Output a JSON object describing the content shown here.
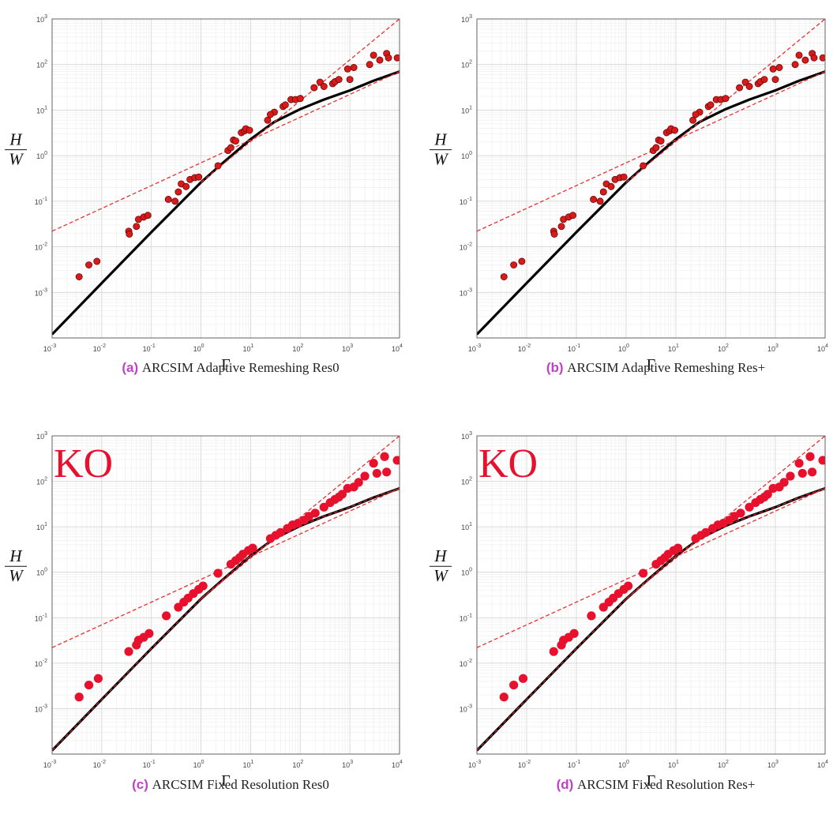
{
  "chart_data": [
    {
      "type": "scatter",
      "panel_tag": "(a)",
      "caption_sc": "ARCSIM",
      "caption_rest": " Adaptive Remeshing Res0",
      "overlay_text": "",
      "xlabel": "Γ",
      "ylabel_num": "H",
      "ylabel_den": "W",
      "xscale": "log",
      "yscale": "log",
      "xlim": [
        0.001,
        10000
      ],
      "ylim": [
        0.0001,
        1000
      ],
      "xticks": [
        "-3",
        "-2",
        "-1",
        "0",
        "1",
        "2",
        "3",
        "4"
      ],
      "yticks": [
        "-3",
        "-2",
        "-1",
        "0",
        "1",
        "2",
        "3"
      ],
      "tick_base": "10",
      "grid": true,
      "marker_size": "small",
      "points": [
        [
          0.0035,
          0.0022
        ],
        [
          0.0055,
          0.004
        ],
        [
          0.008,
          0.0048
        ],
        [
          0.035,
          0.022
        ],
        [
          0.036,
          0.019
        ],
        [
          0.05,
          0.028
        ],
        [
          0.055,
          0.04
        ],
        [
          0.07,
          0.045
        ],
        [
          0.085,
          0.049
        ],
        [
          0.22,
          0.11
        ],
        [
          0.3,
          0.1
        ],
        [
          0.35,
          0.16
        ],
        [
          0.4,
          0.24
        ],
        [
          0.5,
          0.21
        ],
        [
          0.6,
          0.3
        ],
        [
          0.75,
          0.33
        ],
        [
          0.9,
          0.34
        ],
        [
          2.2,
          0.6
        ],
        [
          3.5,
          1.3
        ],
        [
          4,
          1.5
        ],
        [
          4.5,
          2.2
        ],
        [
          5,
          2.1
        ],
        [
          6.5,
          3.2
        ],
        [
          7.5,
          3.5
        ],
        [
          8,
          3.9
        ],
        [
          9.5,
          3.6
        ],
        [
          22,
          6
        ],
        [
          30,
          9
        ],
        [
          25,
          8
        ],
        [
          45,
          12
        ],
        [
          50,
          13
        ],
        [
          65,
          17
        ],
        [
          80,
          17
        ],
        [
          100,
          18
        ],
        [
          190,
          31
        ],
        [
          250,
          41
        ],
        [
          300,
          33
        ],
        [
          450,
          38
        ],
        [
          500,
          42
        ],
        [
          600,
          47
        ],
        [
          900,
          80
        ],
        [
          1000,
          47
        ],
        [
          1200,
          86
        ],
        [
          2500,
          100
        ],
        [
          3000,
          160
        ],
        [
          4000,
          125
        ],
        [
          5500,
          175
        ],
        [
          6000,
          140
        ],
        [
          9000,
          140
        ]
      ],
      "curve": [
        [
          0.001,
          0.00012
        ],
        [
          0.01,
          0.0016
        ],
        [
          0.1,
          0.021
        ],
        [
          1,
          0.26
        ],
        [
          3,
          0.75
        ],
        [
          10,
          2.3
        ],
        [
          30,
          5.5
        ],
        [
          100,
          10.5
        ],
        [
          300,
          17
        ],
        [
          1000,
          27
        ],
        [
          3000,
          44
        ],
        [
          10000,
          70
        ]
      ],
      "dashed_lines": [
        [
          [
            0.001,
            0.022
          ],
          [
            10000,
            70
          ]
        ],
        [
          [
            1,
            0.26
          ],
          [
            10000,
            1000
          ]
        ]
      ],
      "series_colors": {
        "points": "#d91a1a",
        "curve": "#000000",
        "dashed": "#e83030"
      }
    },
    {
      "type": "scatter",
      "panel_tag": "(b)",
      "caption_sc": "ARCSIM",
      "caption_rest": " Adaptive Remeshing Res+",
      "overlay_text": "",
      "xlabel": "Γ",
      "ylabel_num": "H",
      "ylabel_den": "W",
      "xscale": "log",
      "yscale": "log",
      "xlim": [
        0.001,
        10000
      ],
      "ylim": [
        0.0001,
        1000
      ],
      "xticks": [
        "-3",
        "-2",
        "-1",
        "0",
        "1",
        "2",
        "3",
        "4"
      ],
      "yticks": [
        "-3",
        "-2",
        "-1",
        "0",
        "1",
        "2",
        "3"
      ],
      "tick_base": "10",
      "grid": true,
      "marker_size": "small",
      "points": [
        [
          0.0035,
          0.0022
        ],
        [
          0.0055,
          0.004
        ],
        [
          0.008,
          0.0048
        ],
        [
          0.035,
          0.022
        ],
        [
          0.036,
          0.019
        ],
        [
          0.05,
          0.028
        ],
        [
          0.055,
          0.04
        ],
        [
          0.07,
          0.045
        ],
        [
          0.085,
          0.049
        ],
        [
          0.22,
          0.11
        ],
        [
          0.3,
          0.1
        ],
        [
          0.35,
          0.16
        ],
        [
          0.4,
          0.24
        ],
        [
          0.5,
          0.21
        ],
        [
          0.6,
          0.3
        ],
        [
          0.75,
          0.33
        ],
        [
          0.9,
          0.34
        ],
        [
          2.2,
          0.6
        ],
        [
          3.5,
          1.3
        ],
        [
          4,
          1.5
        ],
        [
          4.5,
          2.2
        ],
        [
          5,
          2.1
        ],
        [
          6.5,
          3.2
        ],
        [
          7.5,
          3.5
        ],
        [
          8,
          3.9
        ],
        [
          9.5,
          3.6
        ],
        [
          22,
          6
        ],
        [
          30,
          9
        ],
        [
          25,
          8
        ],
        [
          45,
          12
        ],
        [
          50,
          13
        ],
        [
          65,
          17
        ],
        [
          80,
          17
        ],
        [
          100,
          18
        ],
        [
          190,
          31
        ],
        [
          250,
          41
        ],
        [
          300,
          33
        ],
        [
          450,
          38
        ],
        [
          500,
          42
        ],
        [
          600,
          47
        ],
        [
          900,
          80
        ],
        [
          1000,
          47
        ],
        [
          1200,
          86
        ],
        [
          2500,
          100
        ],
        [
          3000,
          160
        ],
        [
          4000,
          125
        ],
        [
          5500,
          175
        ],
        [
          6000,
          140
        ],
        [
          9000,
          140
        ]
      ],
      "curve": [
        [
          0.001,
          0.00012
        ],
        [
          0.01,
          0.0016
        ],
        [
          0.1,
          0.021
        ],
        [
          1,
          0.26
        ],
        [
          3,
          0.75
        ],
        [
          10,
          2.3
        ],
        [
          30,
          5.5
        ],
        [
          100,
          10.5
        ],
        [
          300,
          17
        ],
        [
          1000,
          27
        ],
        [
          3000,
          44
        ],
        [
          10000,
          70
        ]
      ],
      "dashed_lines": [
        [
          [
            0.001,
            0.022
          ],
          [
            10000,
            70
          ]
        ],
        [
          [
            1,
            0.26
          ],
          [
            10000,
            1000
          ]
        ]
      ],
      "series_colors": {
        "points": "#d91a1a",
        "curve": "#000000",
        "dashed": "#e83030"
      }
    },
    {
      "type": "scatter",
      "panel_tag": "(c)",
      "caption_sc": "ARCSIM",
      "caption_rest": " Fixed Resolution Res0",
      "overlay_text": "KO",
      "xlabel": "Γ",
      "ylabel_num": "H",
      "ylabel_den": "W",
      "xscale": "log",
      "yscale": "log",
      "xlim": [
        0.001,
        10000
      ],
      "ylim": [
        0.0001,
        1000
      ],
      "xticks": [
        "-3",
        "-2",
        "-1",
        "0",
        "1",
        "2",
        "3",
        "4"
      ],
      "yticks": [
        "-3",
        "-2",
        "-1",
        "0",
        "1",
        "2",
        "3"
      ],
      "tick_base": "10",
      "grid": true,
      "marker_size": "large",
      "points": [
        [
          0.0035,
          0.0018
        ],
        [
          0.0055,
          0.0033
        ],
        [
          0.0085,
          0.0046
        ],
        [
          0.035,
          0.018
        ],
        [
          0.05,
          0.025
        ],
        [
          0.055,
          0.032
        ],
        [
          0.07,
          0.037
        ],
        [
          0.09,
          0.045
        ],
        [
          0.2,
          0.11
        ],
        [
          0.35,
          0.17
        ],
        [
          0.45,
          0.22
        ],
        [
          0.55,
          0.27
        ],
        [
          0.7,
          0.34
        ],
        [
          0.9,
          0.42
        ],
        [
          1.1,
          0.5
        ],
        [
          2.2,
          0.95
        ],
        [
          4,
          1.5
        ],
        [
          5,
          1.8
        ],
        [
          6,
          2.1
        ],
        [
          7,
          2.5
        ],
        [
          9,
          3
        ],
        [
          11,
          3.4
        ],
        [
          25,
          5.5
        ],
        [
          32,
          6.5
        ],
        [
          40,
          7.5
        ],
        [
          55,
          9.2
        ],
        [
          70,
          11
        ],
        [
          90,
          12
        ],
        [
          120,
          14
        ],
        [
          150,
          17
        ],
        [
          200,
          20
        ],
        [
          300,
          27
        ],
        [
          400,
          34
        ],
        [
          500,
          40
        ],
        [
          600,
          45
        ],
        [
          700,
          52
        ],
        [
          900,
          70
        ],
        [
          1200,
          75
        ],
        [
          1500,
          95
        ],
        [
          2000,
          130
        ],
        [
          3000,
          250
        ],
        [
          3500,
          150
        ],
        [
          5000,
          350
        ],
        [
          5500,
          160
        ],
        [
          9000,
          290
        ]
      ],
      "curve": [
        [
          0.001,
          0.00012
        ],
        [
          0.01,
          0.0016
        ],
        [
          0.1,
          0.021
        ],
        [
          1,
          0.26
        ],
        [
          3,
          0.75
        ],
        [
          10,
          2.3
        ],
        [
          30,
          5.5
        ],
        [
          100,
          10.5
        ],
        [
          300,
          17
        ],
        [
          1000,
          27
        ],
        [
          3000,
          44
        ],
        [
          10000,
          70
        ]
      ],
      "dashed_lines": [
        [
          [
            0.001,
            0.022
          ],
          [
            10000,
            70
          ]
        ],
        [
          [
            1,
            0.26
          ],
          [
            10000,
            1000
          ]
        ]
      ],
      "series_colors": {
        "points": "#e8112d",
        "curve": "#000000",
        "dashed": "#e83030"
      }
    },
    {
      "type": "scatter",
      "panel_tag": "(d)",
      "caption_sc": "ARCSIM",
      "caption_rest": " Fixed Resolution Res+",
      "overlay_text": "KO",
      "xlabel": "Γ",
      "ylabel_num": "H",
      "ylabel_den": "W",
      "xscale": "log",
      "yscale": "log",
      "xlim": [
        0.001,
        10000
      ],
      "ylim": [
        0.0001,
        1000
      ],
      "xticks": [
        "-3",
        "-2",
        "-1",
        "0",
        "1",
        "2",
        "3",
        "4"
      ],
      "yticks": [
        "-3",
        "-2",
        "-1",
        "0",
        "1",
        "2",
        "3"
      ],
      "tick_base": "10",
      "grid": true,
      "marker_size": "large",
      "points": [
        [
          0.0035,
          0.0018
        ],
        [
          0.0055,
          0.0033
        ],
        [
          0.0085,
          0.0046
        ],
        [
          0.035,
          0.018
        ],
        [
          0.05,
          0.025
        ],
        [
          0.055,
          0.032
        ],
        [
          0.07,
          0.037
        ],
        [
          0.09,
          0.045
        ],
        [
          0.2,
          0.11
        ],
        [
          0.35,
          0.17
        ],
        [
          0.45,
          0.22
        ],
        [
          0.55,
          0.27
        ],
        [
          0.7,
          0.34
        ],
        [
          0.9,
          0.42
        ],
        [
          1.1,
          0.5
        ],
        [
          2.2,
          0.95
        ],
        [
          4,
          1.5
        ],
        [
          5,
          1.8
        ],
        [
          6,
          2.1
        ],
        [
          7,
          2.5
        ],
        [
          9,
          3
        ],
        [
          11,
          3.4
        ],
        [
          25,
          5.5
        ],
        [
          32,
          6.5
        ],
        [
          40,
          7.5
        ],
        [
          55,
          9.2
        ],
        [
          70,
          11
        ],
        [
          90,
          12
        ],
        [
          120,
          14
        ],
        [
          150,
          17
        ],
        [
          200,
          20
        ],
        [
          300,
          27
        ],
        [
          400,
          34
        ],
        [
          500,
          40
        ],
        [
          600,
          45
        ],
        [
          700,
          52
        ],
        [
          900,
          70
        ],
        [
          1200,
          75
        ],
        [
          1500,
          95
        ],
        [
          2000,
          130
        ],
        [
          3000,
          250
        ],
        [
          3500,
          150
        ],
        [
          5000,
          350
        ],
        [
          5500,
          160
        ],
        [
          9000,
          290
        ]
      ],
      "curve": [
        [
          0.001,
          0.00012
        ],
        [
          0.01,
          0.0016
        ],
        [
          0.1,
          0.021
        ],
        [
          1,
          0.26
        ],
        [
          3,
          0.75
        ],
        [
          10,
          2.3
        ],
        [
          30,
          5.5
        ],
        [
          100,
          10.5
        ],
        [
          300,
          17
        ],
        [
          1000,
          27
        ],
        [
          3000,
          44
        ],
        [
          10000,
          70
        ]
      ],
      "dashed_lines": [
        [
          [
            0.001,
            0.022
          ],
          [
            10000,
            70
          ]
        ],
        [
          [
            1,
            0.26
          ],
          [
            10000,
            1000
          ]
        ]
      ],
      "series_colors": {
        "points": "#e8112d",
        "curve": "#000000",
        "dashed": "#e83030"
      }
    }
  ]
}
